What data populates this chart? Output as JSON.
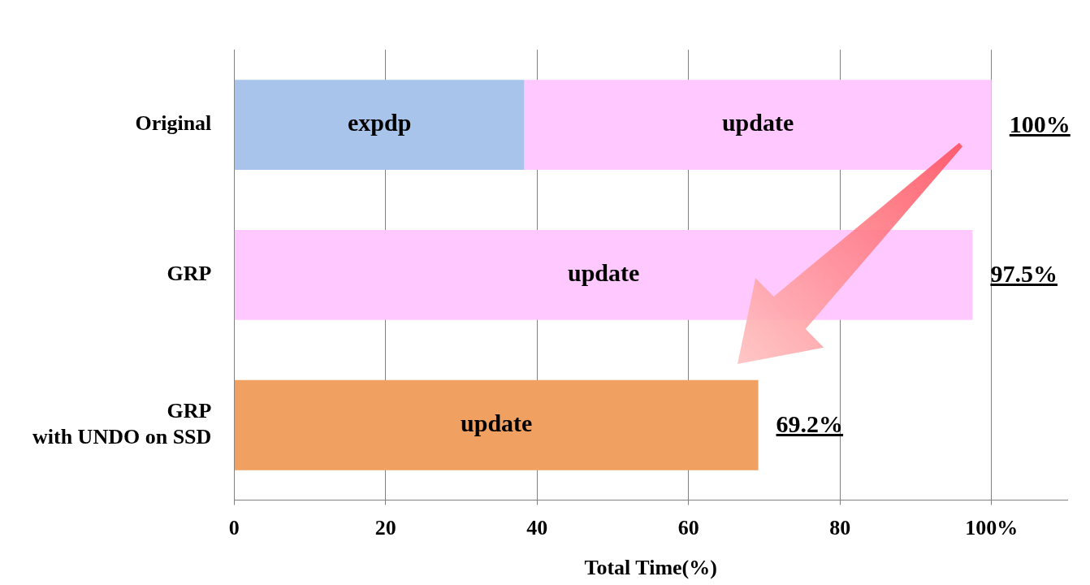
{
  "chart_data": {
    "type": "bar",
    "orientation": "horizontal",
    "stacked": true,
    "categories": [
      "Original",
      "GRP",
      "GRP\nwith UNDO on SSD"
    ],
    "series": [
      {
        "name": "expdp",
        "color": "#a8c4ea",
        "values": [
          38.3,
          null,
          null
        ]
      },
      {
        "name": "update",
        "colors": [
          "#ffc8ff",
          "#ffc8ff",
          "#f0a060"
        ],
        "values": [
          61.7,
          97.5,
          69.2
        ]
      }
    ],
    "totals": [
      "100%",
      "97.5%",
      "69.2%"
    ],
    "xlabel": "Total Time(%)",
    "xlim": [
      0,
      110
    ],
    "xticks": [
      0,
      20,
      40,
      60,
      80,
      {
        "value": 100,
        "label": "100%"
      }
    ],
    "grid": "x"
  }
}
